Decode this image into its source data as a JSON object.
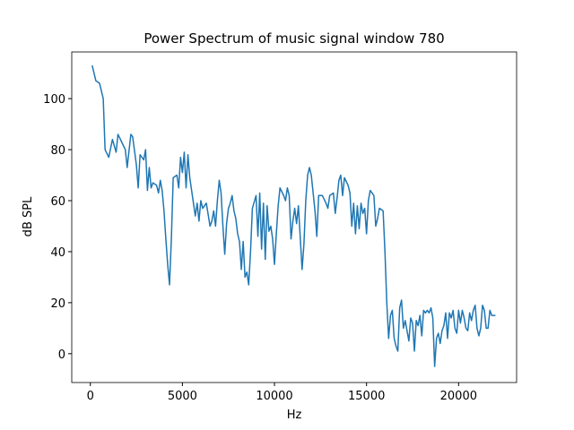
{
  "chart_data": {
    "type": "line",
    "title": "Power Spectrum of music signal window 780",
    "x_label": "Hz",
    "y_label": "dB SPL",
    "color": "#1f77b4",
    "x": [
      100,
      300,
      500,
      700,
      800,
      1000,
      1200,
      1400,
      1500,
      1700,
      1900,
      2000,
      2200,
      2300,
      2500,
      2600,
      2700,
      2900,
      3000,
      3100,
      3200,
      3300,
      3400,
      3600,
      3700,
      3800,
      3900,
      4000,
      4100,
      4200,
      4300,
      4400,
      4500,
      4700,
      4800,
      4900,
      5000,
      5100,
      5200,
      5300,
      5400,
      5600,
      5700,
      5800,
      5900,
      6000,
      6100,
      6300,
      6500,
      6600,
      6700,
      6800,
      6900,
      7000,
      7100,
      7200,
      7300,
      7400,
      7500,
      7600,
      7700,
      7800,
      7900,
      8000,
      8100,
      8200,
      8300,
      8400,
      8500,
      8600,
      8700,
      8800,
      9000,
      9100,
      9200,
      9300,
      9400,
      9500,
      9600,
      9700,
      9800,
      9900,
      10000,
      10100,
      10200,
      10300,
      10500,
      10600,
      10700,
      10800,
      10900,
      11000,
      11100,
      11200,
      11300,
      11500,
      11600,
      11700,
      11800,
      11900,
      12000,
      12100,
      12200,
      12300,
      12400,
      12600,
      12800,
      12900,
      13000,
      13200,
      13300,
      13400,
      13500,
      13600,
      13700,
      13800,
      14000,
      14100,
      14200,
      14300,
      14400,
      14500,
      14600,
      14700,
      14800,
      14900,
      15000,
      15100,
      15200,
      15400,
      15500,
      15600,
      15700,
      15900,
      16000,
      16100,
      16200,
      16300,
      16400,
      16500,
      16600,
      16700,
      16800,
      16900,
      17000,
      17100,
      17200,
      17300,
      17400,
      17500,
      17600,
      17700,
      17800,
      17900,
      18000,
      18100,
      18200,
      18300,
      18400,
      18500,
      18600,
      18700,
      18800,
      18900,
      19000,
      19100,
      19200,
      19300,
      19400,
      19500,
      19600,
      19700,
      19800,
      19900,
      20000,
      20100,
      20200,
      20300,
      20400,
      20500,
      20600,
      20700,
      20800,
      20900,
      21000,
      21100,
      21200,
      21300,
      21400,
      21500,
      21600,
      21700,
      21800,
      22000
    ],
    "values": [
      113,
      107,
      106,
      100,
      80,
      77,
      84,
      79,
      86,
      83,
      80,
      73,
      86,
      85,
      74,
      65,
      78,
      76,
      80,
      64,
      73,
      65,
      67,
      66,
      63,
      68,
      64,
      56,
      45,
      35,
      27,
      45,
      69,
      70,
      65,
      77,
      71,
      79,
      65,
      78,
      69,
      59,
      54,
      59,
      52,
      60,
      57,
      59,
      50,
      52,
      56,
      50,
      60,
      68,
      63,
      50,
      39,
      51,
      57,
      59,
      62,
      56,
      53,
      47,
      44,
      33,
      44,
      30,
      32,
      27,
      40,
      57,
      62,
      46,
      63,
      41,
      59,
      37,
      58,
      48,
      50,
      45,
      35,
      47,
      58,
      65,
      62,
      60,
      65,
      62,
      45,
      52,
      57,
      51,
      58,
      33,
      43,
      60,
      70,
      73,
      70,
      63,
      56,
      46,
      62,
      62,
      59,
      57,
      62,
      63,
      55,
      61,
      68,
      70,
      62,
      69,
      66,
      63,
      50,
      59,
      47,
      58,
      49,
      59,
      55,
      57,
      47,
      60,
      64,
      62,
      50,
      53,
      57,
      56,
      40,
      20,
      6,
      15,
      17,
      6,
      3,
      1,
      18,
      21,
      10,
      13,
      9,
      5,
      14,
      12,
      1,
      13,
      11,
      15,
      7,
      17,
      16,
      17,
      16,
      18,
      14,
      -5,
      6,
      8,
      4,
      9,
      11,
      16,
      6,
      16,
      14,
      17,
      10,
      8,
      17,
      12,
      17,
      14,
      10,
      9,
      16,
      13,
      17,
      19,
      10,
      7,
      10,
      19,
      17,
      10,
      10,
      17,
      15,
      15
    ],
    "xlim": [
      -1010,
      23150
    ],
    "ylim": [
      -11.3,
      118.3
    ],
    "xticks": [
      0,
      5000,
      10000,
      15000,
      20000
    ],
    "yticks": [
      0,
      20,
      40,
      60,
      80,
      100
    ]
  }
}
